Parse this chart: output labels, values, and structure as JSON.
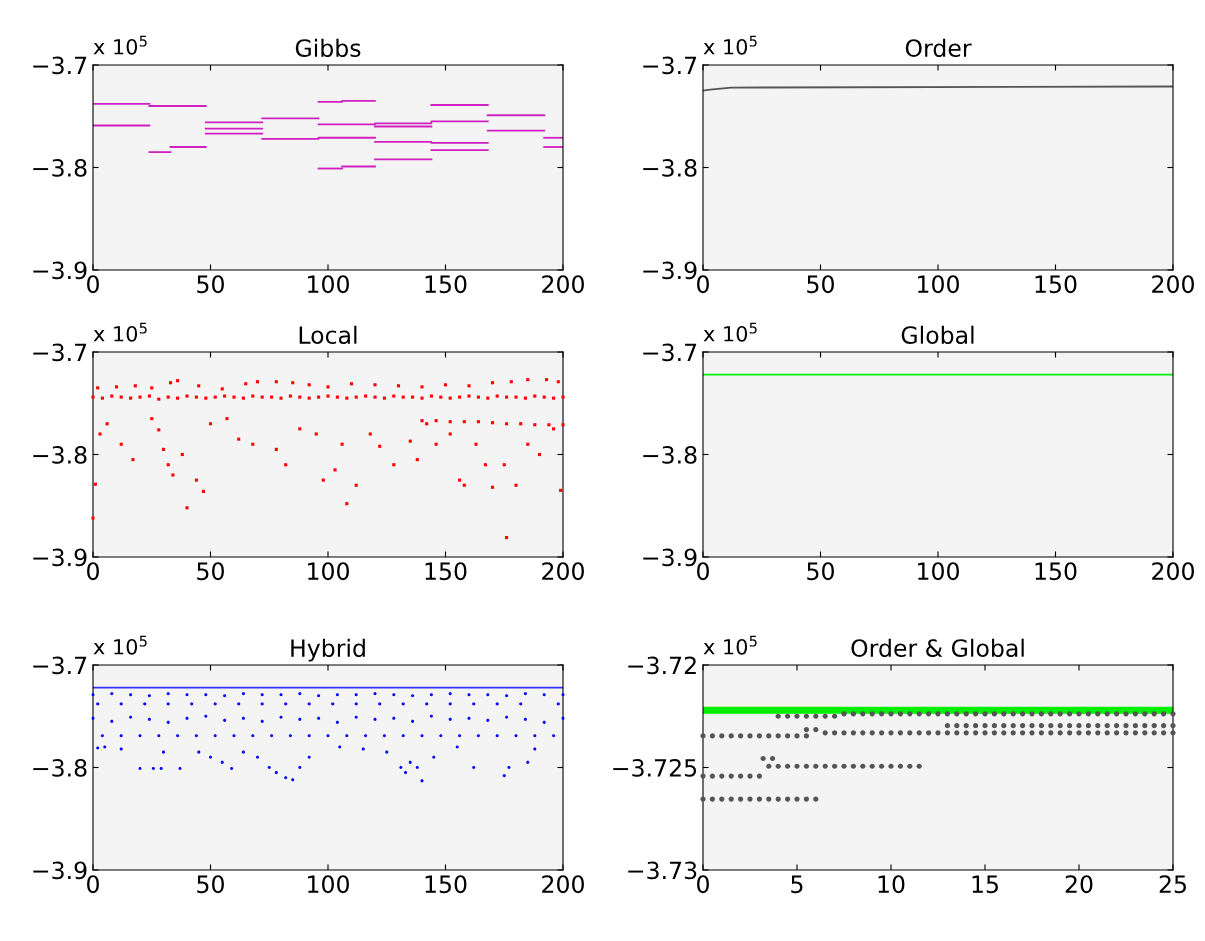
{
  "chart_data": [
    {
      "type": "line",
      "title": "Gibbs",
      "annotations": [
        "x 10$^{5}$"
      ],
      "xlim": [
        0,
        200
      ],
      "xticks": [
        0,
        50,
        100,
        150,
        200
      ],
      "ylim": [
        -3.9,
        -3.7
      ],
      "yticks": [
        -3.7,
        -3.8,
        -3.9
      ],
      "grid": false,
      "legend": false,
      "series": [
        {
          "color": "#d020c0",
          "x": [
            0,
            24
          ],
          "values": [
            -3.738,
            -3.738
          ]
        },
        {
          "color": "#d020c0",
          "x": [
            0,
            24
          ],
          "values": [
            -3.759,
            -3.759
          ]
        },
        {
          "color": "#d020c0",
          "x": [
            24,
            48
          ],
          "values": [
            -3.74,
            -3.74
          ]
        },
        {
          "color": "#d020c0",
          "x": [
            24,
            33
          ],
          "values": [
            -3.785,
            -3.785
          ]
        },
        {
          "color": "#d020c0",
          "x": [
            33,
            48
          ],
          "values": [
            -3.78,
            -3.78
          ]
        },
        {
          "color": "#d020c0",
          "x": [
            48,
            72
          ],
          "values": [
            -3.756,
            -3.756
          ]
        },
        {
          "color": "#d020c0",
          "x": [
            48,
            72
          ],
          "values": [
            -3.762,
            -3.762
          ]
        },
        {
          "color": "#d020c0",
          "x": [
            48,
            72
          ],
          "values": [
            -3.767,
            -3.767
          ]
        },
        {
          "color": "#d020c0",
          "x": [
            72,
            96
          ],
          "values": [
            -3.752,
            -3.752
          ]
        },
        {
          "color": "#d020c0",
          "x": [
            72,
            96,
            96,
            120
          ],
          "values": [
            -3.772,
            -3.772,
            -3.771,
            -3.771
          ]
        },
        {
          "color": "#d020c0",
          "x": [
            96,
            106,
            106,
            120
          ],
          "values": [
            -3.736,
            -3.736,
            -3.735,
            -3.735
          ]
        },
        {
          "color": "#d020c0",
          "x": [
            96,
            106
          ],
          "values": [
            -3.801,
            -3.801
          ]
        },
        {
          "color": "#d020c0",
          "x": [
            106,
            120
          ],
          "values": [
            -3.799,
            -3.799
          ]
        },
        {
          "color": "#d020c0",
          "x": [
            96,
            120,
            120,
            144,
            144,
            168
          ],
          "values": [
            -3.758,
            -3.758,
            -3.757,
            -3.757,
            -3.755,
            -3.755
          ]
        },
        {
          "color": "#d020c0",
          "x": [
            120,
            144
          ],
          "values": [
            -3.76,
            -3.76
          ]
        },
        {
          "color": "#d020c0",
          "x": [
            120,
            144,
            144,
            168
          ],
          "values": [
            -3.775,
            -3.775,
            -3.776,
            -3.776
          ]
        },
        {
          "color": "#d020c0",
          "x": [
            120,
            144
          ],
          "values": [
            -3.792,
            -3.792
          ]
        },
        {
          "color": "#d020c0",
          "x": [
            144,
            168
          ],
          "values": [
            -3.739,
            -3.739
          ]
        },
        {
          "color": "#d020c0",
          "x": [
            144,
            168
          ],
          "values": [
            -3.783,
            -3.783
          ]
        },
        {
          "color": "#d020c0",
          "x": [
            168,
            192
          ],
          "values": [
            -3.749,
            -3.749
          ]
        },
        {
          "color": "#d020c0",
          "x": [
            168,
            192
          ],
          "values": [
            -3.764,
            -3.764
          ]
        },
        {
          "color": "#d020c0",
          "x": [
            192,
            200
          ],
          "values": [
            -3.771,
            -3.771
          ]
        },
        {
          "color": "#d020c0",
          "x": [
            192,
            200
          ],
          "values": [
            -3.78,
            -3.78
          ]
        }
      ]
    },
    {
      "type": "line",
      "title": "Order",
      "annotations": [
        "x 10$^{5}$"
      ],
      "xlim": [
        0,
        200
      ],
      "xticks": [
        0,
        50,
        100,
        150,
        200
      ],
      "ylim": [
        -3.9,
        -3.7
      ],
      "yticks": [
        -3.7,
        -3.8,
        -3.9
      ],
      "grid": false,
      "legend": false,
      "series": [
        {
          "color": "#555555",
          "x": [
            0,
            3,
            12,
            200
          ],
          "values": [
            -3.725,
            -3.724,
            -3.722,
            -3.721
          ]
        }
      ]
    },
    {
      "type": "scatter",
      "title": "Local",
      "annotations": [
        "x 10$^{5}$"
      ],
      "xlim": [
        0,
        200
      ],
      "xticks": [
        0,
        50,
        100,
        150,
        200
      ],
      "ylim": [
        -3.9,
        -3.7
      ],
      "yticks": [
        -3.7,
        -3.8,
        -3.9
      ],
      "grid": false,
      "legend": false,
      "marker": "square",
      "series": [
        {
          "color": "#ff0000",
          "x": [
            0,
            4,
            8,
            12,
            16,
            20,
            24,
            28,
            32,
            36,
            40,
            44,
            48,
            52,
            56,
            60,
            64,
            68,
            72,
            76,
            80,
            84,
            88,
            92,
            96,
            100,
            104,
            108,
            112,
            116,
            120,
            124,
            128,
            132,
            136,
            140,
            144,
            148,
            152,
            156,
            160,
            164,
            168,
            172,
            176,
            180,
            184,
            188,
            192,
            196,
            200
          ],
          "values": [
            -3.744,
            -3.745,
            -3.743,
            -3.744,
            -3.745,
            -3.744,
            -3.743,
            -3.746,
            -3.744,
            -3.745,
            -3.743,
            -3.744,
            -3.745,
            -3.744,
            -3.743,
            -3.744,
            -3.745,
            -3.743,
            -3.744,
            -3.744,
            -3.745,
            -3.743,
            -3.744,
            -3.745,
            -3.744,
            -3.743,
            -3.744,
            -3.745,
            -3.744,
            -3.743,
            -3.744,
            -3.745,
            -3.743,
            -3.744,
            -3.744,
            -3.745,
            -3.743,
            -3.744,
            -3.745,
            -3.744,
            -3.743,
            -3.744,
            -3.745,
            -3.743,
            -3.744,
            -3.744,
            -3.745,
            -3.743,
            -3.744,
            -3.745,
            -3.744
          ]
        },
        {
          "color": "#ff0000",
          "x": [
            2,
            10,
            18,
            25,
            33,
            36,
            45,
            55,
            65,
            70,
            78,
            85,
            92,
            100,
            110,
            120,
            130,
            140,
            150,
            160,
            170,
            178,
            185,
            193,
            198
          ],
          "values": [
            -3.735,
            -3.734,
            -3.733,
            -3.735,
            -3.73,
            -3.728,
            -3.733,
            -3.736,
            -3.731,
            -3.729,
            -3.729,
            -3.73,
            -3.732,
            -3.734,
            -3.731,
            -3.732,
            -3.733,
            -3.734,
            -3.732,
            -3.733,
            -3.73,
            -3.729,
            -3.727,
            -3.727,
            -3.729
          ]
        },
        {
          "color": "#ff0000",
          "x": [
            0,
            1,
            3,
            6,
            12,
            17,
            25,
            28,
            30,
            32,
            34,
            38,
            40,
            44,
            47,
            50,
            57,
            62,
            68,
            78,
            82,
            88,
            95,
            98,
            103,
            106,
            108,
            112,
            118,
            122,
            128,
            135,
            138,
            142,
            146,
            152,
            156,
            158,
            163,
            167,
            170,
            175,
            176,
            180,
            185,
            190,
            196,
            199
          ],
          "values": [
            -3.862,
            -3.829,
            -3.78,
            -3.77,
            -3.79,
            -3.805,
            -3.765,
            -3.776,
            -3.795,
            -3.81,
            -3.82,
            -3.8,
            -3.852,
            -3.825,
            -3.836,
            -3.77,
            -3.765,
            -3.785,
            -3.79,
            -3.795,
            -3.81,
            -3.775,
            -3.78,
            -3.825,
            -3.815,
            -3.79,
            -3.848,
            -3.83,
            -3.78,
            -3.792,
            -3.81,
            -3.787,
            -3.805,
            -3.77,
            -3.79,
            -3.78,
            -3.825,
            -3.83,
            -3.79,
            -3.81,
            -3.832,
            -3.81,
            -3.881,
            -3.83,
            -3.79,
            -3.8,
            -3.775,
            -3.835
          ]
        },
        {
          "color": "#ff0000",
          "x": [
            140,
            146,
            152,
            158,
            164,
            170,
            176,
            182,
            188,
            194,
            200
          ],
          "values": [
            -3.767,
            -3.767,
            -3.768,
            -3.768,
            -3.768,
            -3.769,
            -3.77,
            -3.77,
            -3.771,
            -3.771,
            -3.771
          ]
        }
      ]
    },
    {
      "type": "line",
      "title": "Global",
      "annotations": [
        "x 10$^{5}$"
      ],
      "xlim": [
        0,
        200
      ],
      "xticks": [
        0,
        50,
        100,
        150,
        200
      ],
      "ylim": [
        -3.9,
        -3.7
      ],
      "yticks": [
        -3.7,
        -3.8,
        -3.9
      ],
      "grid": false,
      "legend": false,
      "series": [
        {
          "color": "#00ee00",
          "x": [
            0,
            200
          ],
          "values": [
            -3.722,
            -3.722
          ]
        }
      ]
    },
    {
      "type": "scatter",
      "title": "Hybrid",
      "annotations": [
        "x 10$^{5}$"
      ],
      "xlim": [
        0,
        200
      ],
      "xticks": [
        0,
        50,
        100,
        150,
        200
      ],
      "ylim": [
        -3.9,
        -3.7
      ],
      "yticks": [
        -3.7,
        -3.8,
        -3.9
      ],
      "grid": false,
      "legend": false,
      "marker": "circle",
      "series": [
        {
          "type": "line",
          "marker": "none",
          "color": "#3333ff",
          "x": [
            0,
            200
          ],
          "values": [
            -3.722,
            -3.722
          ]
        },
        {
          "color": "#0000ff",
          "x": [
            0,
            8,
            16,
            24,
            32,
            40,
            48,
            56,
            64,
            72,
            80,
            88,
            96,
            104,
            112,
            120,
            128,
            136,
            144,
            152,
            160,
            168,
            176,
            184,
            192,
            200
          ],
          "values": [
            -3.729,
            -3.728,
            -3.729,
            -3.73,
            -3.728,
            -3.729,
            -3.729,
            -3.73,
            -3.728,
            -3.729,
            -3.729,
            -3.728,
            -3.73,
            -3.729,
            -3.729,
            -3.728,
            -3.729,
            -3.73,
            -3.729,
            -3.728,
            -3.729,
            -3.729,
            -3.73,
            -3.728,
            -3.729,
            -3.729
          ]
        },
        {
          "color": "#0000ff",
          "x": [
            2,
            12,
            22,
            32,
            42,
            52,
            62,
            72,
            82,
            92,
            102,
            112,
            122,
            132,
            142,
            152,
            162,
            172,
            182,
            198
          ],
          "values": [
            -3.738,
            -3.738,
            -3.738,
            -3.738,
            -3.738,
            -3.738,
            -3.738,
            -3.738,
            -3.738,
            -3.738,
            -3.738,
            -3.738,
            -3.738,
            -3.738,
            -3.738,
            -3.738,
            -3.738,
            -3.738,
            -3.738,
            -3.738
          ]
        },
        {
          "color": "#0000ff",
          "x": [
            0,
            8,
            16,
            24,
            32,
            40,
            48,
            56,
            64,
            72,
            80,
            88,
            96,
            104,
            112,
            120,
            128,
            136,
            144,
            152,
            160,
            168,
            176,
            184,
            192,
            200
          ],
          "values": [
            -3.752,
            -3.755,
            -3.751,
            -3.753,
            -3.756,
            -3.752,
            -3.75,
            -3.754,
            -3.752,
            -3.755,
            -3.751,
            -3.753,
            -3.752,
            -3.756,
            -3.751,
            -3.753,
            -3.752,
            -3.755,
            -3.75,
            -3.753,
            -3.752,
            -3.754,
            -3.751,
            -3.753,
            -3.756,
            -3.752
          ]
        },
        {
          "color": "#0000ff",
          "x": [
            4,
            12,
            20,
            28,
            36,
            44,
            52,
            60,
            68,
            76,
            84,
            92,
            100,
            108,
            116,
            124,
            132,
            140,
            148,
            156,
            164,
            172,
            180,
            188,
            196
          ],
          "values": [
            -3.769,
            -3.769,
            -3.769,
            -3.769,
            -3.769,
            -3.769,
            -3.769,
            -3.769,
            -3.769,
            -3.769,
            -3.769,
            -3.769,
            -3.769,
            -3.769,
            -3.769,
            -3.769,
            -3.769,
            -3.769,
            -3.769,
            -3.769,
            -3.769,
            -3.769,
            -3.769,
            -3.769,
            -3.769
          ]
        },
        {
          "color": "#0000ff",
          "x": [
            2,
            5,
            12,
            20,
            25.7,
            29,
            37,
            30,
            45,
            50,
            55,
            59,
            64,
            70,
            75,
            78,
            82,
            85,
            88,
            92,
            105,
            115,
            125,
            131,
            133,
            135,
            138,
            140,
            145,
            155,
            162,
            175,
            177,
            185,
            188
          ],
          "values": [
            -3.781,
            -3.78,
            -3.782,
            -3.801,
            -3.801,
            -3.801,
            -3.801,
            -3.785,
            -3.785,
            -3.79,
            -3.795,
            -3.801,
            -3.785,
            -3.79,
            -3.8,
            -3.805,
            -3.81,
            -3.812,
            -3.8,
            -3.79,
            -3.78,
            -3.782,
            -3.785,
            -3.8,
            -3.805,
            -3.795,
            -3.8,
            -3.813,
            -3.79,
            -3.78,
            -3.8,
            -3.808,
            -3.8,
            -3.795,
            -3.782
          ]
        }
      ]
    },
    {
      "type": "scatter",
      "title": "Order & Global",
      "annotations": [
        "x 10$^{5}$"
      ],
      "xlim": [
        0,
        25
      ],
      "xticks": [
        0,
        5,
        10,
        15,
        20,
        25
      ],
      "ylim": [
        -3.73,
        -3.72
      ],
      "yticks": [
        -3.72,
        -3.725,
        -3.73
      ],
      "grid": false,
      "legend": false,
      "marker": "circle",
      "series": [
        {
          "color": "#555555",
          "x": [
            4,
            4.5,
            5,
            5.5,
            6,
            6.5,
            7
          ],
          "values": [
            -3.7225,
            -3.7225,
            -3.7225,
            -3.7225,
            -3.7225,
            -3.7225,
            -3.7225
          ]
        },
        {
          "color": "#555555",
          "x": [
            7.5,
            8,
            8.5,
            9,
            9.5,
            10,
            10.5,
            11,
            11.5,
            12,
            12.5,
            13,
            13.5,
            14,
            14.5,
            15,
            15.5,
            16,
            16.5,
            17,
            17.5,
            18,
            18.5,
            19,
            19.5,
            20,
            20.5,
            21,
            21.5,
            22,
            22.5,
            23,
            23.5,
            24,
            24.5,
            25
          ],
          "values": [
            -3.72238,
            -3.72238,
            -3.72238,
            -3.72238,
            -3.72238,
            -3.72238,
            -3.72238,
            -3.72238,
            -3.72238,
            -3.72238,
            -3.72238,
            -3.72238,
            -3.72238,
            -3.72238,
            -3.72238,
            -3.72238,
            -3.72238,
            -3.72238,
            -3.72238,
            -3.72238,
            -3.72238,
            -3.72238,
            -3.72238,
            -3.72238,
            -3.72238,
            -3.72238,
            -3.72238,
            -3.72238,
            -3.72238,
            -3.72238,
            -3.72238,
            -3.72238,
            -3.72238,
            -3.72238,
            -3.72238,
            -3.72238
          ]
        },
        {
          "color": "#555555",
          "x": [
            13,
            13.5,
            14,
            14.5,
            15,
            15.5,
            16,
            16.5,
            17,
            17.5,
            18,
            18.5,
            19,
            19.5,
            20,
            20.5,
            21,
            21.5,
            22,
            22.5,
            23,
            23.5,
            24,
            24.5,
            25
          ],
          "values": [
            -3.72296,
            -3.72296,
            -3.72296,
            -3.72296,
            -3.72296,
            -3.72296,
            -3.72296,
            -3.72296,
            -3.72296,
            -3.72296,
            -3.72296,
            -3.72296,
            -3.72296,
            -3.72296,
            -3.72296,
            -3.72296,
            -3.72296,
            -3.72296,
            -3.72296,
            -3.72296,
            -3.72296,
            -3.72296,
            -3.72296,
            -3.72296,
            -3.72296
          ]
        },
        {
          "color": "#555555",
          "x": [
            5.5,
            6
          ],
          "values": [
            -3.72315,
            -3.72315
          ]
        },
        {
          "color": "#555555",
          "x": [
            6.5,
            7,
            7.5,
            8,
            8.5,
            9,
            9.5,
            10,
            10.5,
            11,
            11.5,
            12,
            12.5,
            13,
            13.5,
            14,
            14.5,
            15,
            15.5,
            16,
            16.5,
            17,
            17.5,
            18,
            18.5,
            19,
            19.5,
            20,
            20.5,
            21,
            21.5,
            22,
            22.5,
            23,
            23.5,
            24,
            24.5,
            25
          ],
          "values": [
            -3.72331,
            -3.72331,
            -3.72331,
            -3.72331,
            -3.72331,
            -3.72331,
            -3.72331,
            -3.72331,
            -3.72331,
            -3.72331,
            -3.72331,
            -3.72331,
            -3.72331,
            -3.72331,
            -3.72331,
            -3.72331,
            -3.72331,
            -3.72331,
            -3.72331,
            -3.72331,
            -3.72331,
            -3.72331,
            -3.72331,
            -3.72331,
            -3.72331,
            -3.72331,
            -3.72331,
            -3.72331,
            -3.72331,
            -3.72331,
            -3.72331,
            -3.72331,
            -3.72331,
            -3.72331,
            -3.72331,
            -3.72331,
            -3.72331,
            -3.72331
          ]
        },
        {
          "color": "#555555",
          "x": [
            0,
            0.5,
            1,
            1.5,
            2,
            2.5,
            3,
            3.5,
            4,
            4.5,
            5,
            5.5
          ],
          "values": [
            -3.72346,
            -3.72346,
            -3.72346,
            -3.72346,
            -3.72346,
            -3.72346,
            -3.72346,
            -3.72346,
            -3.72346,
            -3.72346,
            -3.72346,
            -3.72346
          ]
        },
        {
          "color": "#555555",
          "x": [
            3.2,
            3.7
          ],
          "values": [
            -3.72456,
            -3.72456
          ]
        },
        {
          "color": "#555555",
          "x": [
            3.5,
            4,
            4.5,
            5,
            5.5,
            6,
            6.5,
            7,
            7.5,
            8,
            8.5,
            9,
            9.5,
            10,
            10.5,
            11,
            11.5
          ],
          "values": [
            -3.72494,
            -3.72494,
            -3.72494,
            -3.72494,
            -3.72494,
            -3.72494,
            -3.72494,
            -3.72494,
            -3.72494,
            -3.72494,
            -3.72494,
            -3.72494,
            -3.72494,
            -3.72494,
            -3.72494,
            -3.72494,
            -3.72494
          ]
        },
        {
          "color": "#555555",
          "x": [
            0,
            0.5,
            1,
            1.5,
            2,
            2.5,
            3
          ],
          "values": [
            -3.72542,
            -3.72542,
            -3.72542,
            -3.72542,
            -3.72542,
            -3.72542,
            -3.72542
          ]
        },
        {
          "color": "#555555",
          "x": [
            0,
            0.5,
            1,
            1.5,
            2,
            2.5,
            3,
            3.5,
            4,
            4.5,
            5,
            5.5,
            6
          ],
          "values": [
            -3.72654,
            -3.72654,
            -3.72654,
            -3.72654,
            -3.72654,
            -3.72654,
            -3.72654,
            -3.72654,
            -3.72654,
            -3.72654,
            -3.72654,
            -3.72654,
            -3.72654
          ]
        },
        {
          "type": "line",
          "marker": "none",
          "color": "#00ee00",
          "x": [
            0,
            25
          ],
          "values": [
            -3.72221,
            -3.72221
          ]
        }
      ]
    }
  ]
}
